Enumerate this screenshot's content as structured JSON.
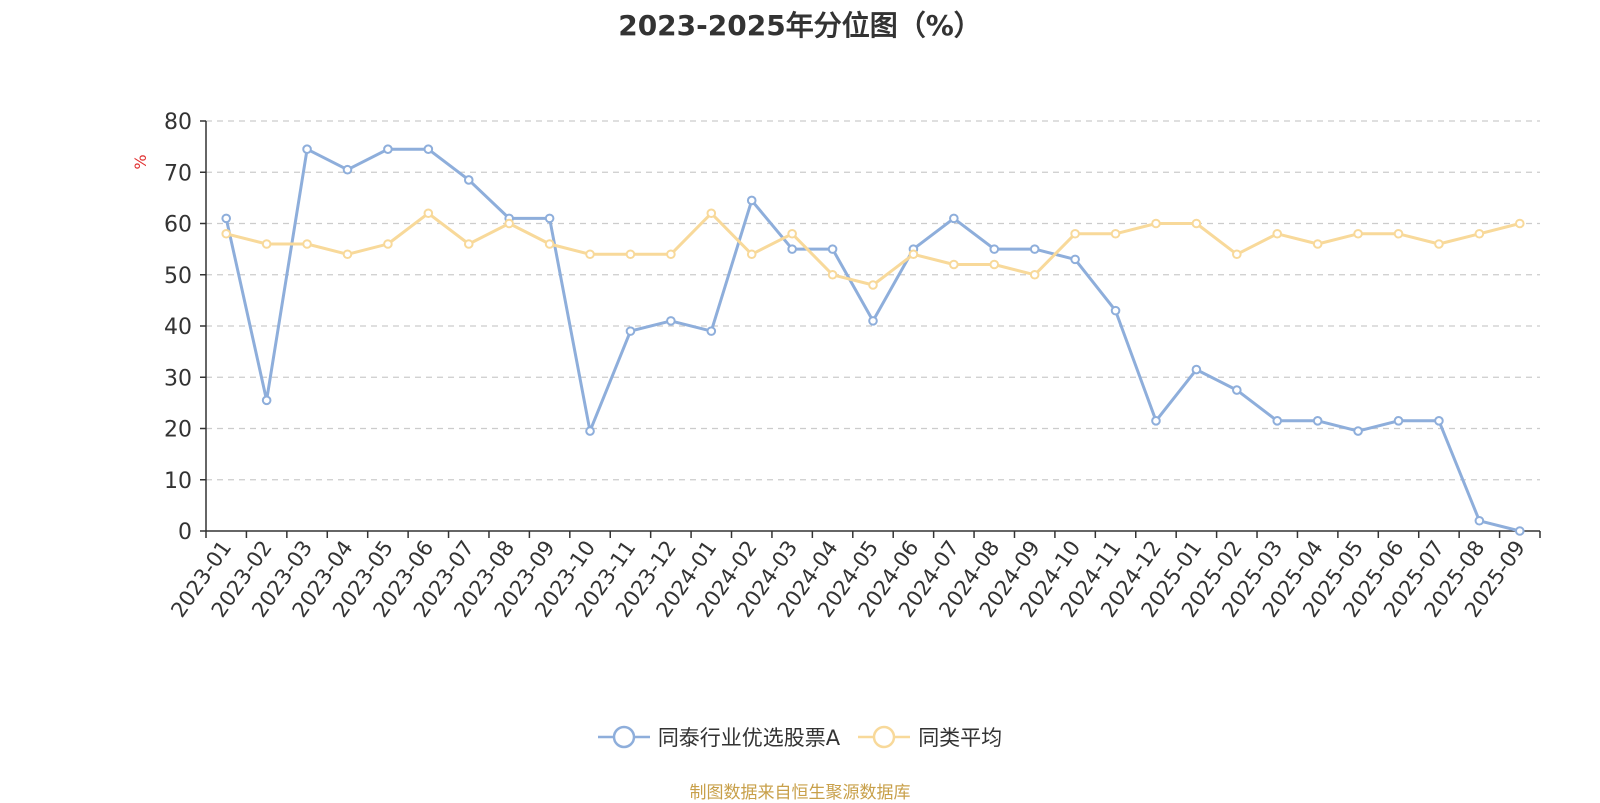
{
  "chart_data": {
    "type": "line",
    "title": "2023-2025年分位图（%）",
    "ylabel": "%",
    "xlabel": "",
    "ylim": [
      0,
      80
    ],
    "yticks": [
      0,
      10,
      20,
      30,
      40,
      50,
      60,
      70,
      80
    ],
    "grid": true,
    "legend_position": "bottom-center",
    "categories": [
      "2023-01",
      "2023-02",
      "2023-03",
      "2023-04",
      "2023-05",
      "2023-06",
      "2023-07",
      "2023-08",
      "2023-09",
      "2023-10",
      "2023-11",
      "2023-12",
      "2024-01",
      "2024-02",
      "2024-03",
      "2024-04",
      "2024-05",
      "2024-06",
      "2024-07",
      "2024-08",
      "2024-09",
      "2024-10",
      "2024-11",
      "2024-12",
      "2025-01",
      "2025-02",
      "2025-03",
      "2025-04",
      "2025-05",
      "2025-06",
      "2025-07",
      "2025-08",
      "2025-09"
    ],
    "series": [
      {
        "name": "同泰行业优选股票A",
        "color": "#8eaedb",
        "values": [
          61,
          25.5,
          74.5,
          70.5,
          74.5,
          74.5,
          68.5,
          61,
          61,
          19.5,
          39,
          41,
          39,
          64.5,
          55,
          55,
          41,
          55,
          61,
          55,
          55,
          53,
          43,
          21.5,
          31.5,
          27.5,
          21.5,
          21.5,
          19.5,
          21.5,
          21.5,
          2,
          0
        ]
      },
      {
        "name": "同类平均",
        "color": "#f8d99a",
        "values": [
          58,
          56,
          56,
          54,
          56,
          62,
          56,
          60,
          56,
          54,
          54,
          54,
          62,
          54,
          58,
          50,
          48,
          54,
          52,
          52,
          50,
          58,
          58,
          60,
          60,
          54,
          58,
          56,
          58,
          58,
          56,
          58,
          60
        ]
      }
    ]
  },
  "footer": {
    "source": "制图数据来自恒生聚源数据库"
  }
}
